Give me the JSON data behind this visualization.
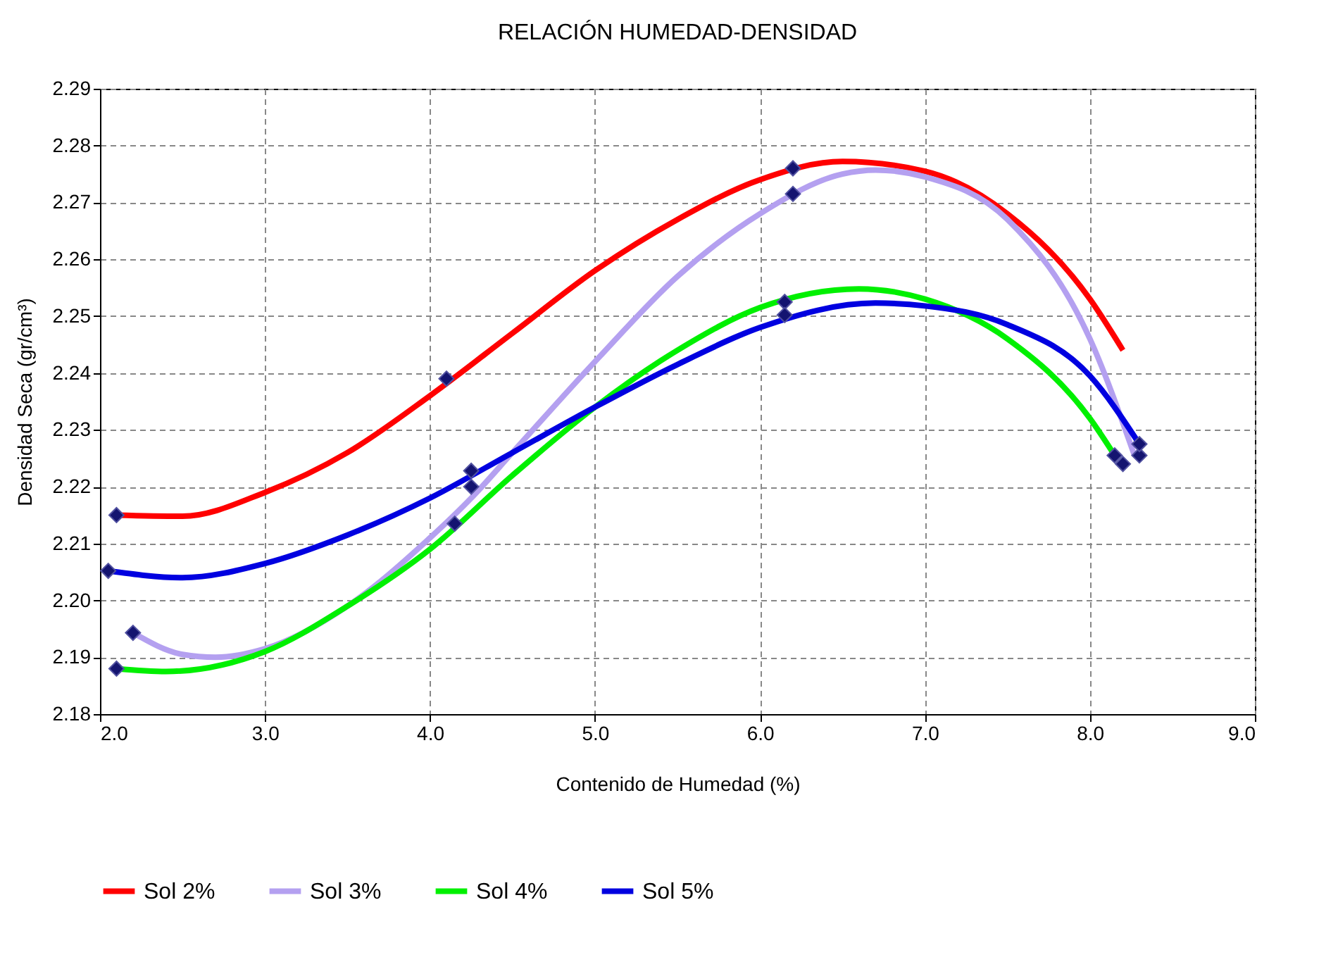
{
  "chart_data": {
    "type": "line",
    "title": "RELACIÓN HUMEDAD-DENSIDAD",
    "xlabel": "Contenido de Humedad (%)",
    "ylabel": "Densidad Seca (gr/cm³)",
    "xlim": [
      2.0,
      9.0
    ],
    "ylim": [
      2.18,
      2.29
    ],
    "xticks": [
      {
        "value": 2,
        "label": "2.0"
      },
      {
        "value": 3,
        "label": "3.0"
      },
      {
        "value": 4,
        "label": "4.0"
      },
      {
        "value": 5,
        "label": "5.0"
      },
      {
        "value": 6,
        "label": "6.0"
      },
      {
        "value": 7,
        "label": "7.0"
      },
      {
        "value": 8,
        "label": "8.0"
      },
      {
        "value": 9,
        "label": "9.0"
      }
    ],
    "yticks": [
      2.18,
      2.19,
      {
        "value": 2.2,
        "label": "2.20"
      },
      2.21,
      2.22,
      2.23,
      2.24,
      2.25,
      2.26,
      2.27,
      2.28,
      2.29
    ],
    "grid": true,
    "legend": "bottom",
    "marker": "none",
    "line_style": "solid",
    "series": [
      {
        "name": "Sol 2%",
        "color": "#ff0000",
        "x": [
          2.1,
          2.5,
          3.0,
          3.5,
          4.0,
          4.5,
          5.0,
          5.5,
          6.0,
          6.5,
          7.0,
          7.5,
          8.0,
          8.2
        ],
        "values": [
          2.215,
          2.2148,
          2.219,
          2.226,
          2.236,
          2.247,
          2.258,
          2.267,
          2.274,
          2.2772,
          2.2755,
          2.268,
          2.253,
          2.244
        ]
      },
      {
        "name": "Sol 3%",
        "color": "#b4a0f0",
        "x": [
          2.2,
          2.5,
          2.7,
          3.0,
          3.5,
          4.0,
          4.25,
          4.5,
          5.0,
          5.5,
          6.0,
          6.5,
          6.7,
          7.0,
          7.5,
          8.0,
          8.27
        ],
        "values": [
          2.1943,
          2.1905,
          2.19,
          2.1915,
          2.199,
          2.211,
          2.218,
          2.226,
          2.242,
          2.257,
          2.268,
          2.275,
          2.2757,
          2.2745,
          2.267,
          2.246,
          2.2255
        ]
      },
      {
        "name": "Sol 4%",
        "color": "#00f000",
        "x": [
          2.1,
          2.4,
          3.0,
          3.5,
          4.0,
          4.5,
          5.0,
          5.5,
          6.0,
          6.6,
          7.0,
          7.5,
          8.0,
          8.15
        ],
        "values": [
          2.188,
          2.1875,
          2.191,
          2.199,
          2.209,
          2.222,
          2.234,
          2.244,
          2.2515,
          2.2548,
          2.253,
          2.246,
          2.232,
          2.2255
        ]
      },
      {
        "name": "Sol 5%",
        "color": "#0000e0",
        "x": [
          2.05,
          2.5,
          3.0,
          3.5,
          4.0,
          4.5,
          5.0,
          5.5,
          6.0,
          6.7,
          7.0,
          7.5,
          8.0,
          8.3
        ],
        "values": [
          2.2052,
          2.204,
          2.2065,
          2.2115,
          2.218,
          2.226,
          2.234,
          2.2415,
          2.248,
          2.2523,
          2.2518,
          2.2485,
          2.2395,
          2.2275
        ]
      },
      {
        "color": "#141470",
        "type": "scatter",
        "marker": "diamond",
        "x": [
          2.1,
          4.1,
          6.2,
          8.2,
          2.2,
          4.25,
          6.2,
          8.3,
          2.1,
          4.15,
          6.15,
          8.15,
          2.05,
          4.25,
          6.15,
          8.3
        ],
        "values": [
          2.215,
          2.239,
          2.276,
          2.224,
          2.1943,
          2.22,
          2.2715,
          2.2255,
          2.188,
          2.2135,
          2.2525,
          2.2255,
          2.2052,
          2.2228,
          2.2502,
          2.2275
        ]
      }
    ]
  }
}
